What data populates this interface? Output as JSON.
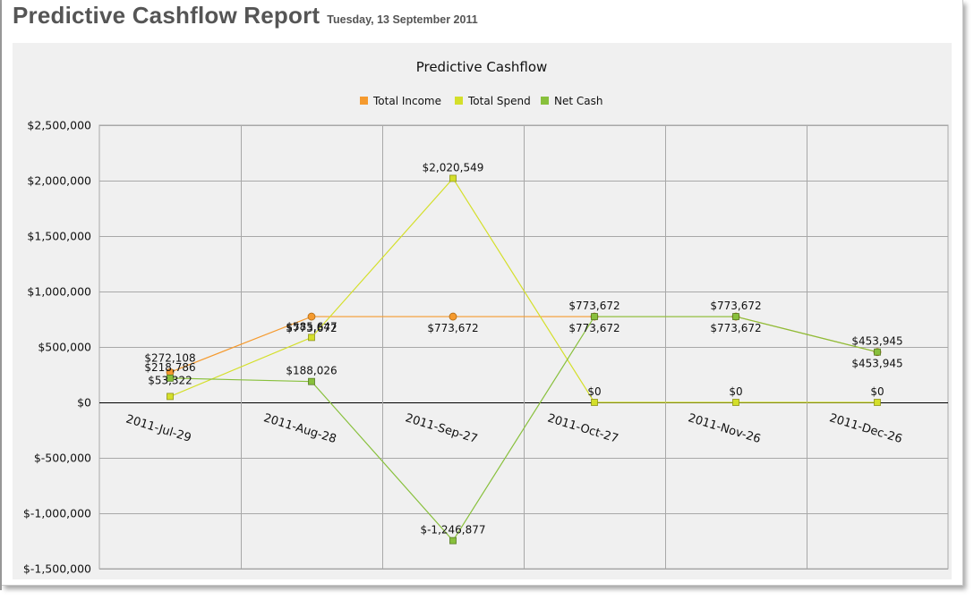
{
  "header": {
    "title": "Predictive Cashflow Report",
    "date": "Tuesday, 13 September 2011"
  },
  "colors": {
    "total_income": "#f59a2e",
    "total_spend": "#d4df2a",
    "net_cash": "#88c03c",
    "grid": "#a8a8a8",
    "panel_bg": "#f0f0f0"
  },
  "chart_data": {
    "type": "line",
    "title": "Predictive Cashflow",
    "categories": [
      "2011-Jul-29",
      "2011-Aug-28",
      "2011-Sep-27",
      "2011-Oct-27",
      "2011-Nov-26",
      "2011-Dec-26"
    ],
    "series": [
      {
        "name": "Total Income",
        "values": [
          272108,
          773672,
          773672,
          773672,
          773672,
          453945
        ],
        "labels": [
          "$272,108",
          "$773,672",
          "$773,672",
          "$773,672",
          "$773,672",
          "$453,945"
        ],
        "marker": "circle"
      },
      {
        "name": "Total Spend",
        "values": [
          53322,
          585647,
          2020549,
          0,
          0,
          0
        ],
        "labels": [
          "$53,322",
          "$585,647",
          "$2,020,549",
          "$0",
          "$0",
          "$0"
        ],
        "marker": "square"
      },
      {
        "name": "Net Cash",
        "values": [
          218786,
          188026,
          -1246877,
          773672,
          773672,
          453945
        ],
        "labels": [
          "$218,786",
          "$188,026",
          "$-1,246,877",
          "$773,672",
          "$773,672",
          "$453,945"
        ],
        "marker": "square"
      }
    ],
    "ylim": [
      -1500000,
      2500000
    ],
    "yticks": [
      2500000,
      2000000,
      1500000,
      1000000,
      500000,
      0,
      -500000,
      -1000000,
      -1500000
    ],
    "ytick_labels": [
      "$2,500,000",
      "$2,000,000",
      "$1,500,000",
      "$1,000,000",
      "$500,000",
      "$0",
      "$-500,000",
      "$-1,000,000",
      "$-1,500,000"
    ],
    "grid": true,
    "legend_position": "top-center",
    "xlabel": "",
    "ylabel": ""
  }
}
